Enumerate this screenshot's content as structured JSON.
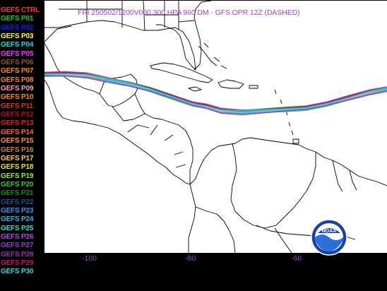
{
  "title": "FRI 250502/1200V000  300 HPA 960 DM - GFS OPR 12Z (DASHED)",
  "legend": [
    {
      "label": "GEFS CTRL",
      "color": "#ff3b3b"
    },
    {
      "label": "GEFS P01",
      "color": "#22cc22"
    },
    {
      "label": "GEFS P02",
      "color": "#1a1aff"
    },
    {
      "label": "GEFS P03",
      "color": "#ffff33"
    },
    {
      "label": "GEFS P04",
      "color": "#22dddd"
    },
    {
      "label": "GEFS P05",
      "color": "#ff33ff"
    },
    {
      "label": "GEFS P06",
      "color": "#8b5a2b"
    },
    {
      "label": "GEFS P07",
      "color": "#ff8c1a"
    },
    {
      "label": "GEFS P08",
      "color": "#ff8c1a"
    },
    {
      "label": "GEFS P09",
      "color": "#ff99bb"
    },
    {
      "label": "GEFS P10",
      "color": "#ff8c1a"
    },
    {
      "label": "GEFS P11",
      "color": "#e03030"
    },
    {
      "label": "GEFS P12",
      "color": "#b01020"
    },
    {
      "label": "GEFS P13",
      "color": "#e82020"
    },
    {
      "label": "GEFS P14",
      "color": "#ff6633"
    },
    {
      "label": "GEFS P15",
      "color": "#ff9933"
    },
    {
      "label": "GEFS P16",
      "color": "#cc8833"
    },
    {
      "label": "GEFS P17",
      "color": "#ffcc33"
    },
    {
      "label": "GEFS P18",
      "color": "#e6e633"
    },
    {
      "label": "GEFS P19",
      "color": "#99ee33"
    },
    {
      "label": "GEFS P20",
      "color": "#33cc33"
    },
    {
      "label": "GEFS P21",
      "color": "#228822"
    },
    {
      "label": "GEFS P22",
      "color": "#1f4f9f"
    },
    {
      "label": "GEFS P23",
      "color": "#3399ff"
    },
    {
      "label": "GEFS P24",
      "color": "#22bbee"
    },
    {
      "label": "GEFS P25",
      "color": "#33dddd"
    },
    {
      "label": "GEFS P26",
      "color": "#aa55dd"
    },
    {
      "label": "GEFS P27",
      "color": "#8844cc"
    },
    {
      "label": "GEFS P28",
      "color": "#9933aa"
    },
    {
      "label": "GEFS P29",
      "color": "#cc1177"
    },
    {
      "label": "GEFS P30",
      "color": "#22dddd"
    }
  ],
  "axis": {
    "x_ticks": [
      "-100",
      "-80",
      "-60"
    ]
  },
  "colors": {
    "title": "#9a3fd0",
    "ticks": "#9a3fd0",
    "background": "#000000",
    "map": "#ffffff",
    "coast": "#000000"
  },
  "logo": {
    "text": "NOAA",
    "icon": "noaa-logo-icon"
  }
}
